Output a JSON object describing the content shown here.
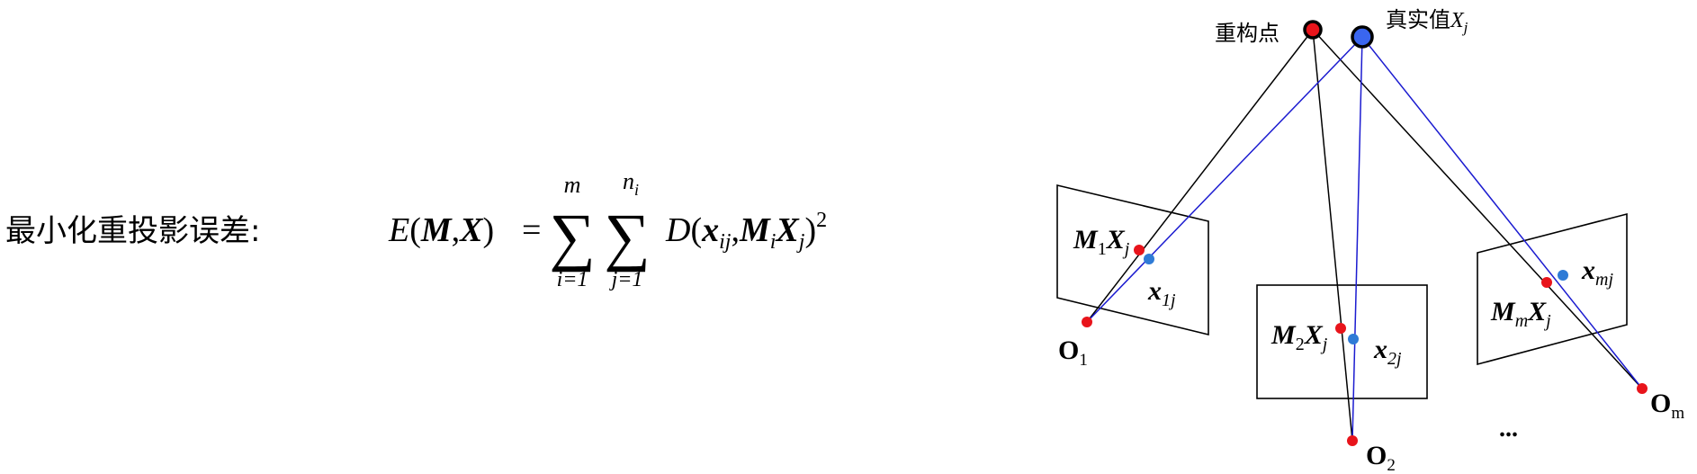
{
  "formula": {
    "label": "最小化重投影误差:",
    "lhs_name": "E",
    "lhs_arg1": "M",
    "lhs_arg2": "X",
    "equals": "=",
    "sum1": {
      "symbol": "∑",
      "upper": "m",
      "lower": "i=1"
    },
    "sum2": {
      "symbol": "∑",
      "upper": "n",
      "upper_sub": "i",
      "lower": "j=1"
    },
    "func": "D",
    "arg_x": "x",
    "arg_x_sub": "ij",
    "arg_m": "M",
    "arg_m_sub": "i",
    "arg_X": "X",
    "arg_X_sub": "j",
    "power": "2"
  },
  "diagram": {
    "reconstructed_point_label": "重构点",
    "true_value_label": "真实值",
    "true_value_var": "X",
    "true_value_sub": "j",
    "cameras": [
      {
        "center": "O",
        "center_sub": "1",
        "proj_M": "M",
        "proj_M_sub": "1",
        "proj_X": "X",
        "proj_X_sub": "j",
        "obs": "x",
        "obs_sub": "1j"
      },
      {
        "center": "O",
        "center_sub": "2",
        "proj_M": "M",
        "proj_M_sub": "2",
        "proj_X": "X",
        "proj_X_sub": "j",
        "obs": "x",
        "obs_sub": "2j"
      },
      {
        "center": "O",
        "center_sub": "m",
        "proj_M": "M",
        "proj_M_sub": "m",
        "proj_X": "X",
        "proj_X_sub": "j",
        "obs": "x",
        "obs_sub": "mj"
      }
    ],
    "ellipsis": "...",
    "colors": {
      "reconstructed": "#e8141b",
      "true_value": "#3a66f0",
      "observed": "#2f7bd6",
      "blue_ray": "#1b1bd0",
      "black_ray": "#000000"
    }
  }
}
